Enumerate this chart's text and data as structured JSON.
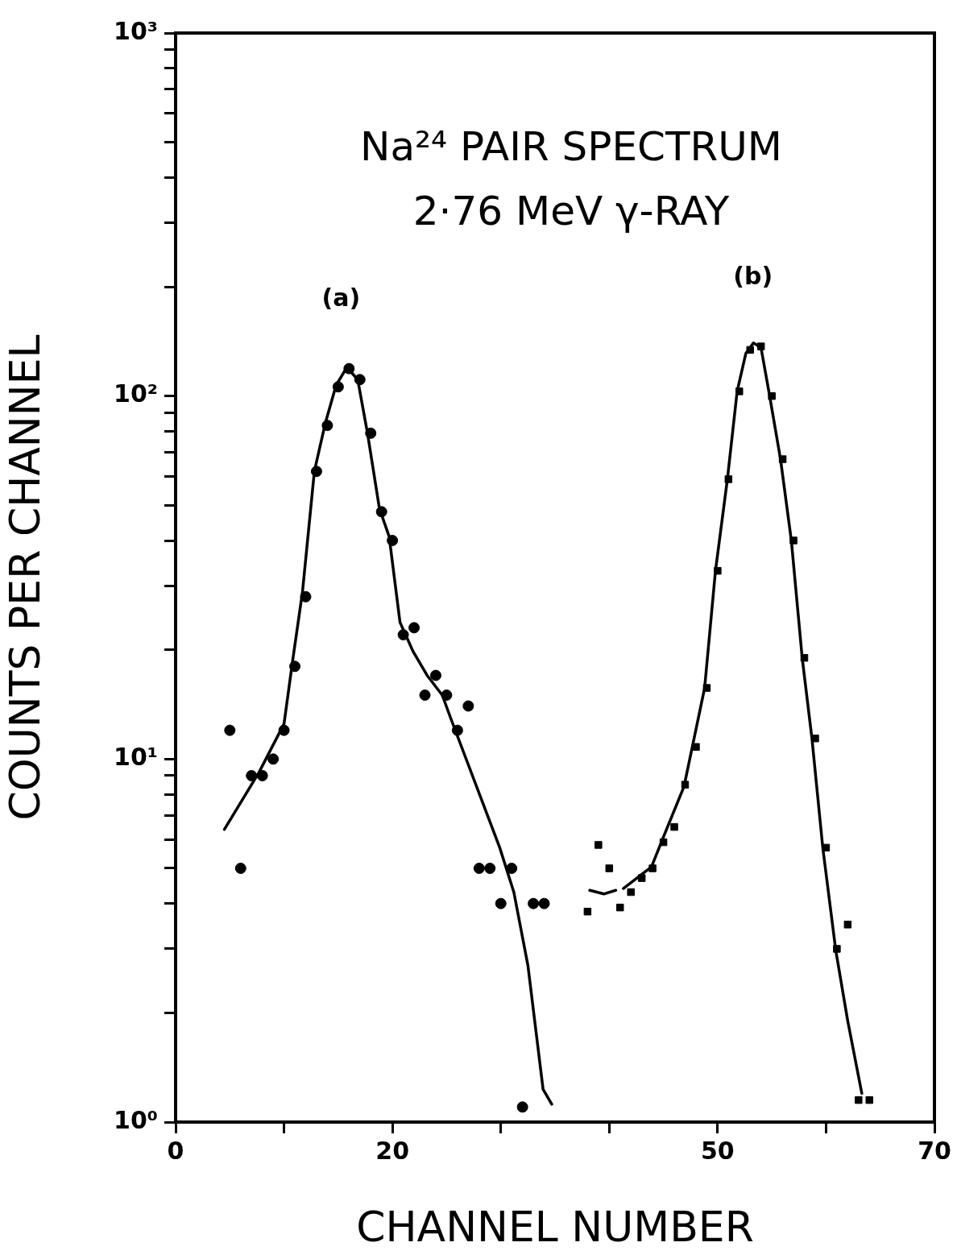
{
  "chart_data": {
    "type": "scatter",
    "title": "Na²⁴ PAIR SPECTRUM",
    "subtitle": "2·76 MeV γ-RAY",
    "xlabel": "CHANNEL NUMBER",
    "ylabel": "COUNTS PER CHANNEL",
    "log": "y",
    "grid": false,
    "legend": false,
    "xlim": [
      0,
      70
    ],
    "xticks": [
      0,
      {
        "value": 10,
        "label": null
      },
      20,
      {
        "value": 30,
        "label": null
      },
      {
        "value": 40,
        "label": null
      },
      50,
      {
        "value": 60,
        "label": null
      },
      70
    ],
    "ylim": [
      1,
      1000
    ],
    "yticks": [
      {
        "value": 1,
        "label": "10⁰"
      },
      {
        "value": 2,
        "label": null
      },
      {
        "value": 3,
        "label": null
      },
      {
        "value": 4,
        "label": null
      },
      {
        "value": 5,
        "label": null
      },
      {
        "value": 6,
        "label": null
      },
      {
        "value": 7,
        "label": null
      },
      {
        "value": 8,
        "label": null
      },
      {
        "value": 9,
        "label": null
      },
      {
        "value": 10,
        "label": "10¹"
      },
      {
        "value": 20,
        "label": null
      },
      {
        "value": 30,
        "label": null
      },
      {
        "value": 40,
        "label": null
      },
      {
        "value": 50,
        "label": null
      },
      {
        "value": 60,
        "label": null
      },
      {
        "value": 70,
        "label": null
      },
      {
        "value": 80,
        "label": null
      },
      {
        "value": 90,
        "label": null
      },
      {
        "value": 100,
        "label": "10²"
      },
      {
        "value": 200,
        "label": null
      },
      {
        "value": 300,
        "label": null
      },
      {
        "value": 400,
        "label": null
      },
      {
        "value": 500,
        "label": null
      },
      {
        "value": 600,
        "label": null
      },
      {
        "value": 700,
        "label": null
      },
      {
        "value": 800,
        "label": null
      },
      {
        "value": 900,
        "label": null
      },
      {
        "value": 1000,
        "label": "10³"
      }
    ],
    "annotations": [
      "(a)",
      "(b)"
    ],
    "series": [
      {
        "type": "scatter",
        "marker": "circle",
        "color": "#000000",
        "x": [
          5,
          6,
          7,
          8,
          9,
          10,
          11,
          12,
          13,
          14,
          15,
          16,
          17,
          18,
          19,
          20,
          21,
          22,
          23,
          24,
          25,
          26,
          27,
          28,
          29,
          30,
          31,
          32,
          33,
          34
        ],
        "values": [
          12,
          5,
          9,
          9,
          10,
          12,
          18,
          28,
          62,
          83,
          106,
          119,
          111,
          79,
          48,
          40,
          22,
          23,
          15,
          17,
          15,
          12,
          14,
          5,
          5,
          4,
          5,
          1.1,
          4,
          4
        ]
      },
      {
        "type": "line",
        "color": "#000000",
        "line_style": "solid",
        "x": [
          4.5,
          7.7,
          10,
          10.8,
          11.7,
          12.8,
          13.8,
          14.8,
          15.8,
          16.8,
          17.7,
          18.8,
          19.7,
          20.7,
          21.9,
          23.2,
          24.6,
          25.4,
          29.9,
          31.2,
          32.5,
          33.9,
          34.7
        ],
        "values": [
          6.4,
          9.2,
          12.5,
          18.7,
          28.8,
          62,
          84,
          107,
          120,
          111,
          79,
          49,
          41,
          23.8,
          19.8,
          17,
          15,
          12.9,
          5.7,
          4.3,
          2.7,
          1.23,
          1.12
        ]
      },
      {
        "type": "scatter",
        "marker": "square",
        "color": "#000000",
        "x": [
          38,
          39,
          40,
          41,
          42,
          43,
          44,
          45,
          46,
          47,
          48,
          49,
          50,
          51,
          52,
          53,
          54,
          55,
          56,
          57,
          58,
          59,
          60,
          61,
          62,
          63,
          64
        ],
        "values": [
          3.8,
          5.8,
          5,
          3.9,
          4.3,
          4.7,
          5,
          5.9,
          6.5,
          8.5,
          10.8,
          15.7,
          33,
          59,
          103,
          134,
          137,
          100,
          67,
          40,
          19,
          11.4,
          5.7,
          3,
          3.5,
          1.15,
          1.15
        ]
      },
      {
        "type": "line",
        "color": "#000000",
        "line_style": "solid",
        "x": [
          38.2,
          39.5,
          40.6,
          40.9,
          41.3,
          43.9,
          45,
          46.9,
          48.8,
          49.8,
          50.9,
          51.8,
          52.6,
          53.3,
          54,
          54.8,
          55.8,
          56.8,
          57.8,
          58.7,
          59.7,
          60.9,
          62,
          63.3
        ],
        "values": [
          4.35,
          4.25,
          4.35,
          null,
          4.4,
          5.05,
          6.1,
          8.4,
          15.7,
          33,
          59,
          103,
          131,
          140,
          136,
          100,
          67,
          40,
          19,
          11.4,
          5.7,
          2.97,
          1.9,
          1.2
        ]
      }
    ]
  }
}
